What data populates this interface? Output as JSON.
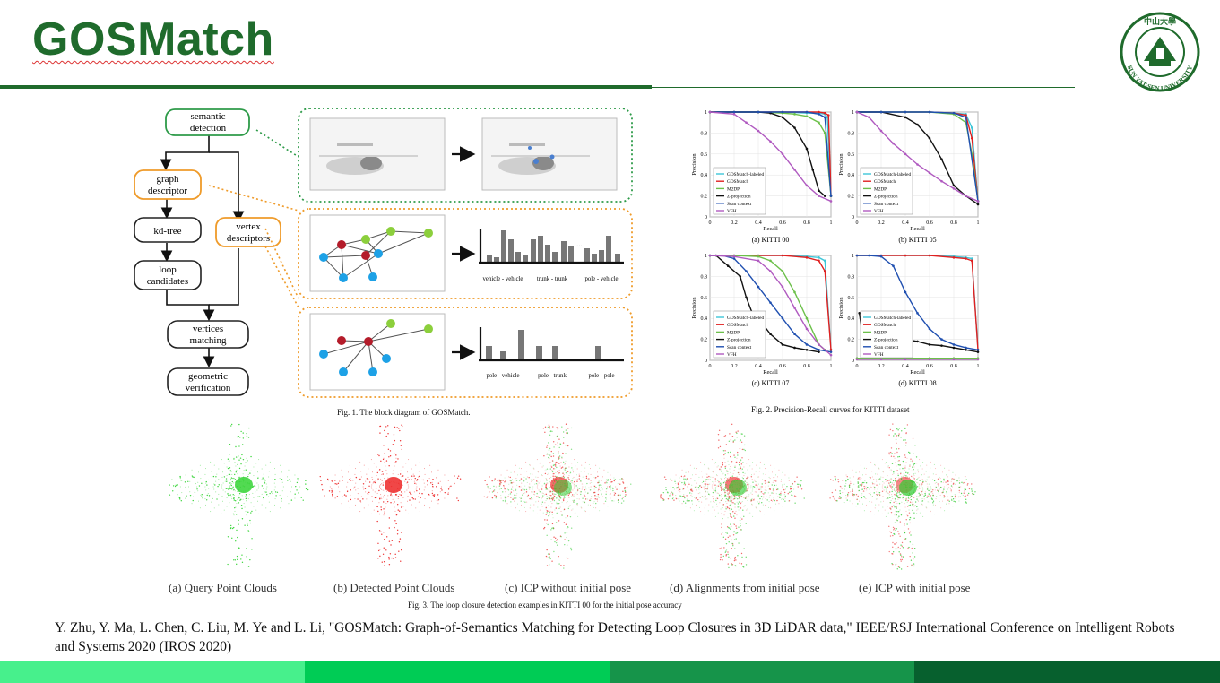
{
  "slide": {
    "title": "GOSMatch"
  },
  "logo": {
    "text": "SUN YAT-SEN UNIVERSITY",
    "chinese": "中山大學",
    "icon": "university-seal-icon"
  },
  "fig1": {
    "caption": "Fig. 1. The block diagram of GOSMatch.",
    "nodes": {
      "semantic": [
        "semantic",
        "detection"
      ],
      "graph": [
        "graph",
        "descriptor"
      ],
      "kdtree": "kd-tree",
      "loop": [
        "loop",
        "candidates"
      ],
      "vertex": [
        "vertex",
        "descriptors"
      ],
      "vertices": [
        "vertices",
        "matching"
      ],
      "geometric": [
        "geometric",
        "verification"
      ]
    },
    "hist1_labels": [
      "vehicle - vehicle",
      "trunk - trunk",
      "pole - vehicle"
    ],
    "hist1_ellipsis": "...",
    "hist2_labels": [
      "pole - vehicle",
      "pole - trunk",
      "pole - pole"
    ]
  },
  "fig2": {
    "caption": "Fig. 2. Precision-Recall curves for KITTI dataset",
    "legend": [
      "GOSMatch-labeled",
      "GOSMatch",
      "M2DP",
      "Z-projection",
      "Scan context",
      "VFH"
    ],
    "colors": [
      "#3ec6d8",
      "#e02020",
      "#6cc04a",
      "#111111",
      "#1f4fb0",
      "#b05ac0"
    ],
    "xlabel": "Recall",
    "ylabel": "Precision",
    "ticks": [
      "0",
      "0.2",
      "0.4",
      "0.6",
      "0.8",
      "1"
    ],
    "panels": [
      "(a) KITTI 00",
      "(b) KITTI 05",
      "(c) KITTI 07",
      "(d) KITTI 08"
    ]
  },
  "chart_data": [
    {
      "type": "line",
      "title": "(a) KITTI 00",
      "xlabel": "Recall",
      "ylabel": "Precision",
      "xlim": [
        0,
        1
      ],
      "ylim": [
        0,
        1
      ],
      "series": [
        {
          "name": "GOSMatch-labeled",
          "x": [
            0,
            0.2,
            0.4,
            0.6,
            0.8,
            0.9,
            0.95,
            0.97,
            1.0
          ],
          "y": [
            1,
            1,
            1,
            1,
            0.99,
            0.99,
            0.98,
            0.95,
            0.2
          ]
        },
        {
          "name": "GOSMatch",
          "x": [
            0,
            0.2,
            0.4,
            0.6,
            0.8,
            0.9,
            0.95,
            0.98,
            1.0
          ],
          "y": [
            1,
            1,
            1,
            1,
            1,
            1,
            0.99,
            0.97,
            0.2
          ]
        },
        {
          "name": "M2DP",
          "x": [
            0,
            0.2,
            0.4,
            0.6,
            0.7,
            0.8,
            0.9,
            0.95,
            1.0
          ],
          "y": [
            1,
            1,
            1,
            0.99,
            0.98,
            0.96,
            0.9,
            0.8,
            0.2
          ]
        },
        {
          "name": "Z-projection",
          "x": [
            0,
            0.2,
            0.4,
            0.5,
            0.6,
            0.7,
            0.8,
            0.85,
            0.9,
            0.95
          ],
          "y": [
            1,
            1,
            1,
            0.99,
            0.95,
            0.85,
            0.65,
            0.45,
            0.25,
            0.2
          ]
        },
        {
          "name": "Scan context",
          "x": [
            0,
            0.2,
            0.4,
            0.6,
            0.8,
            0.9,
            0.95,
            1.0
          ],
          "y": [
            1,
            1,
            1,
            1,
            1,
            0.98,
            0.95,
            0.2
          ]
        },
        {
          "name": "VFH",
          "x": [
            0,
            0.2,
            0.3,
            0.4,
            0.5,
            0.6,
            0.7,
            0.8,
            0.9,
            1.0
          ],
          "y": [
            1,
            0.98,
            0.9,
            0.82,
            0.72,
            0.6,
            0.45,
            0.3,
            0.2,
            0.15
          ]
        }
      ]
    },
    {
      "type": "line",
      "title": "(b) KITTI 05",
      "xlabel": "Recall",
      "ylabel": "Precision",
      "xlim": [
        0,
        1
      ],
      "ylim": [
        0,
        1
      ],
      "series": [
        {
          "name": "GOSMatch-labeled",
          "x": [
            0,
            0.2,
            0.4,
            0.6,
            0.8,
            0.9,
            0.95,
            1.0
          ],
          "y": [
            1,
            1,
            1,
            1,
            0.99,
            0.98,
            0.85,
            0.15
          ]
        },
        {
          "name": "GOSMatch",
          "x": [
            0,
            0.2,
            0.4,
            0.6,
            0.8,
            0.9,
            0.95,
            1.0
          ],
          "y": [
            1,
            1,
            1,
            1,
            0.99,
            0.97,
            0.75,
            0.15
          ]
        },
        {
          "name": "M2DP",
          "x": [
            0,
            0.2,
            0.4,
            0.6,
            0.8,
            0.9,
            0.95,
            1.0
          ],
          "y": [
            1,
            1,
            1,
            1,
            0.98,
            0.9,
            0.6,
            0.15
          ]
        },
        {
          "name": "Z-projection",
          "x": [
            0,
            0.2,
            0.4,
            0.5,
            0.6,
            0.7,
            0.8,
            0.9,
            1.0
          ],
          "y": [
            1,
            1,
            0.95,
            0.88,
            0.75,
            0.55,
            0.3,
            0.2,
            0.12
          ]
        },
        {
          "name": "Scan context",
          "x": [
            0,
            0.2,
            0.4,
            0.6,
            0.8,
            0.9,
            1.0
          ],
          "y": [
            1,
            1,
            1,
            1,
            0.99,
            0.95,
            0.15
          ]
        },
        {
          "name": "VFH",
          "x": [
            0,
            0.1,
            0.2,
            0.3,
            0.4,
            0.5,
            0.6,
            0.7,
            0.8,
            0.9,
            1.0
          ],
          "y": [
            1,
            0.95,
            0.82,
            0.7,
            0.6,
            0.5,
            0.42,
            0.34,
            0.27,
            0.2,
            0.15
          ]
        }
      ]
    },
    {
      "type": "line",
      "title": "(c) KITTI 07",
      "xlabel": "Recall",
      "ylabel": "Precision",
      "xlim": [
        0,
        1
      ],
      "ylim": [
        0,
        1
      ],
      "series": [
        {
          "name": "GOSMatch-labeled",
          "x": [
            0,
            0.2,
            0.4,
            0.6,
            0.8,
            0.9,
            0.95,
            1.0
          ],
          "y": [
            1,
            1,
            1,
            1,
            0.99,
            0.98,
            0.95,
            0.1
          ]
        },
        {
          "name": "GOSMatch",
          "x": [
            0,
            0.2,
            0.4,
            0.6,
            0.8,
            0.9,
            0.95,
            1.0
          ],
          "y": [
            1,
            1,
            1,
            1,
            0.98,
            0.95,
            0.85,
            0.1
          ]
        },
        {
          "name": "M2DP",
          "x": [
            0,
            0.2,
            0.4,
            0.5,
            0.6,
            0.7,
            0.8,
            0.9,
            0.95
          ],
          "y": [
            1,
            1,
            0.99,
            0.95,
            0.85,
            0.65,
            0.4,
            0.15,
            0.1
          ]
        },
        {
          "name": "Z-projection",
          "x": [
            0.05,
            0.15,
            0.25,
            0.3,
            0.35,
            0.4,
            0.5,
            0.6,
            0.7,
            0.8,
            0.9
          ],
          "y": [
            1,
            0.9,
            0.8,
            0.6,
            0.45,
            0.4,
            0.25,
            0.15,
            0.12,
            0.1,
            0.08
          ]
        },
        {
          "name": "Scan context",
          "x": [
            0,
            0.1,
            0.2,
            0.3,
            0.4,
            0.5,
            0.6,
            0.7,
            0.8,
            0.9,
            1.0
          ],
          "y": [
            1,
            1,
            0.97,
            0.85,
            0.7,
            0.55,
            0.4,
            0.25,
            0.15,
            0.1,
            0.08
          ]
        },
        {
          "name": "VFH",
          "x": [
            0,
            0.2,
            0.4,
            0.5,
            0.6,
            0.7,
            0.8,
            0.9,
            1.0
          ],
          "y": [
            1,
            0.99,
            0.95,
            0.85,
            0.7,
            0.5,
            0.3,
            0.15,
            0.05
          ]
        }
      ]
    },
    {
      "type": "line",
      "title": "(d) KITTI 08",
      "xlabel": "Recall",
      "ylabel": "Precision",
      "xlim": [
        0,
        1
      ],
      "ylim": [
        0,
        1
      ],
      "series": [
        {
          "name": "GOSMatch-labeled",
          "x": [
            0,
            0.2,
            0.4,
            0.6,
            0.8,
            0.9,
            0.95,
            1.0
          ],
          "y": [
            1,
            1,
            1,
            1,
            0.99,
            0.98,
            0.97,
            0.1
          ]
        },
        {
          "name": "GOSMatch",
          "x": [
            0,
            0.2,
            0.4,
            0.6,
            0.8,
            0.9,
            0.95,
            1.0
          ],
          "y": [
            1,
            1,
            1,
            1,
            0.98,
            0.97,
            0.95,
            0.1
          ]
        },
        {
          "name": "M2DP",
          "x": [
            0,
            0.2,
            0.4,
            0.6,
            0.8,
            1.0
          ],
          "y": [
            0.02,
            0.02,
            0.02,
            0.02,
            0.02,
            0.02
          ]
        },
        {
          "name": "Z-projection",
          "x": [
            0.02,
            0.05,
            0.1,
            0.2,
            0.3,
            0.4,
            0.5,
            0.6,
            0.7,
            0.8,
            0.9,
            1.0
          ],
          "y": [
            0.45,
            0.2,
            0.15,
            0.15,
            0.2,
            0.2,
            0.18,
            0.15,
            0.14,
            0.12,
            0.1,
            0.08
          ]
        },
        {
          "name": "Scan context",
          "x": [
            0,
            0.1,
            0.2,
            0.3,
            0.4,
            0.5,
            0.6,
            0.7,
            0.8,
            0.9,
            1.0
          ],
          "y": [
            1,
            1,
            0.99,
            0.9,
            0.65,
            0.45,
            0.3,
            0.2,
            0.15,
            0.12,
            0.1
          ]
        },
        {
          "name": "VFH",
          "x": [
            0,
            0.2,
            0.4,
            0.6,
            0.8,
            1.0
          ],
          "y": [
            0.01,
            0.01,
            0.01,
            0.01,
            0.01,
            0.01
          ]
        }
      ]
    }
  ],
  "fig3": {
    "caption": "Fig. 3. The loop closure detection examples in KITTI 00 for the initial pose accuracy",
    "panels": [
      "(a) Query Point Clouds",
      "(b) Detected Point Clouds",
      "(c) ICP without initial pose",
      "(d) Alignments from initial pose",
      "(e) ICP with initial pose"
    ]
  },
  "reference": {
    "text": "Y. Zhu, Y. Ma, L. Chen, C. Liu, M. Ye and L. Li, \"GOSMatch: Graph-of-Semantics Matching for Detecting Loop Closures in 3D LiDAR data,\" IEEE/RSJ International Conference on Intelligent Robots and Systems 2020 (IROS 2020)"
  },
  "footer": {
    "colors": [
      "#47f08c",
      "#00cc55",
      "#16944a",
      "#07602e"
    ]
  }
}
